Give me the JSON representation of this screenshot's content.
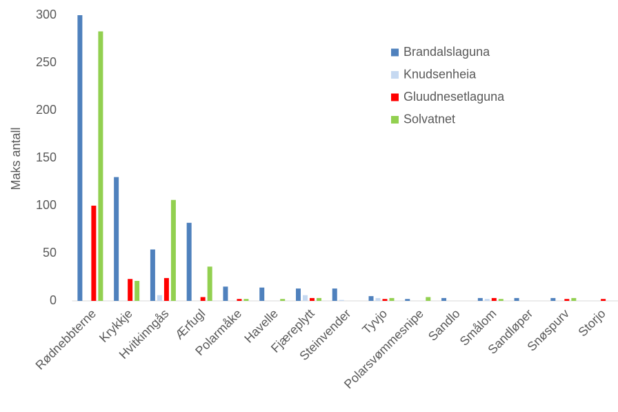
{
  "chart_data": {
    "type": "bar",
    "y_label": "Maks antall",
    "categories": [
      "Rødnebbterne",
      "Krykkje",
      "Hvitkinngås",
      "Ærfugl",
      "Polarmåke",
      "Havelle",
      "Fjæreplytt",
      "Steinvender",
      "Tyvjo",
      "Polarsvømmesnipe",
      "Sandlo",
      "Smålom",
      "Sandløper",
      "Snøspurv",
      "Storjo"
    ],
    "series": [
      {
        "name": "Brandalslaguna",
        "color": "#4f81bd",
        "values": [
          300,
          130,
          54,
          82,
          15,
          14,
          13,
          13,
          5,
          2,
          3,
          3,
          3,
          3,
          0
        ]
      },
      {
        "name": "Knudsenheia",
        "color": "#c6d9f1",
        "values": [
          0,
          0,
          6,
          0,
          0,
          0,
          6,
          1,
          3,
          0,
          0,
          2,
          0,
          0,
          0
        ]
      },
      {
        "name": "Gluudnesetlaguna",
        "color": "#ff0000",
        "values": [
          100,
          23,
          24,
          4,
          2,
          0,
          3,
          0,
          2,
          0,
          0,
          3,
          0,
          2,
          2
        ]
      },
      {
        "name": "Solvatnet",
        "color": "#92d050",
        "values": [
          283,
          21,
          106,
          36,
          2,
          2,
          3,
          0,
          3,
          4,
          0,
          2,
          0,
          3,
          0
        ]
      }
    ],
    "ylim": [
      0,
      300
    ],
    "yticks": [
      0,
      50,
      100,
      150,
      200,
      250,
      300
    ],
    "grid": false,
    "legend": "upper right"
  }
}
